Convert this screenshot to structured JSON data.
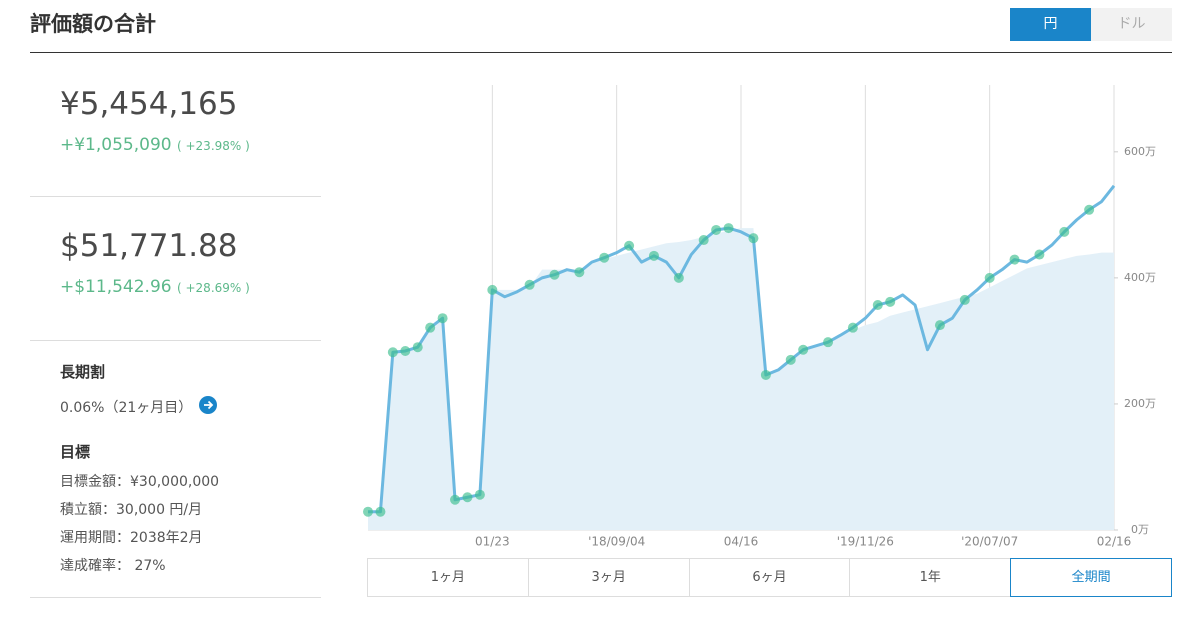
{
  "header": {
    "title": "評価額の合計",
    "currency_toggle": [
      "円",
      "ドル"
    ]
  },
  "summary": {
    "yen": {
      "total": "¥5,454,165",
      "gain": "+¥1,055,090",
      "gain_pct": "( +23.98% )"
    },
    "usd": {
      "total": "$51,771.88",
      "gain": "+$11,542.96",
      "gain_pct": "( +28.69% )"
    },
    "discount": {
      "label": "長期割",
      "value": "0.06%（21ヶ月目）"
    },
    "goal": {
      "label": "目標",
      "lines": [
        "目標金額：¥30,000,000",
        "積立額：30,000 円/月",
        "運用期間：2038年2月",
        "達成確率： 27%"
      ]
    }
  },
  "chart_data": {
    "type": "line",
    "categories": [
      null,
      null,
      null,
      null,
      null,
      null,
      null,
      null,
      null,
      null,
      "01/23",
      null,
      null,
      null,
      null,
      null,
      null,
      null,
      null,
      null,
      "'18/09/04",
      null,
      null,
      null,
      null,
      null,
      null,
      null,
      null,
      null,
      "04/16",
      null,
      null,
      null,
      null,
      null,
      null,
      null,
      null,
      null,
      "'19/11/26",
      null,
      null,
      null,
      null,
      null,
      null,
      null,
      null,
      null,
      "'20/07/07",
      null,
      null,
      null,
      null,
      null,
      null,
      null,
      null,
      null,
      "02/16"
    ],
    "series": [
      {
        "color": "#6cb8e0",
        "values": [
          29,
          29,
          282,
          284,
          290,
          321,
          336,
          48,
          52,
          56,
          381,
          370,
          378,
          389,
          400,
          405,
          413,
          409,
          425,
          432,
          440,
          451,
          425,
          435,
          425,
          400,
          437,
          460,
          476,
          479,
          473,
          463,
          246,
          254,
          270,
          286,
          292,
          298,
          309,
          321,
          336,
          357,
          362,
          373,
          357,
          286,
          325,
          336,
          365,
          381,
          400,
          413,
          429,
          425,
          437,
          452,
          473,
          492,
          508,
          521,
          546
        ]
      },
      {
        "color": "#e3f0f8",
        "fill": true,
        "values": [
          29,
          29,
          282,
          284,
          290,
          321,
          336,
          48,
          52,
          56,
          381,
          381,
          381,
          385,
          413,
          413,
          413,
          413,
          425,
          430,
          435,
          440,
          445,
          450,
          455,
          457,
          460,
          465,
          470,
          475,
          479,
          479,
          246,
          254,
          270,
          286,
          292,
          298,
          309,
          317,
          325,
          330,
          340,
          345,
          350,
          355,
          360,
          365,
          370,
          375,
          385,
          395,
          405,
          415,
          420,
          425,
          430,
          435,
          437,
          440,
          440
        ]
      },
      {
        "color": "#3dbf8f",
        "markers": true,
        "values": [
          29,
          29,
          282,
          284,
          290,
          321,
          336,
          48,
          52,
          56,
          381,
          null,
          null,
          389,
          null,
          405,
          null,
          409,
          null,
          432,
          null,
          451,
          null,
          435,
          null,
          400,
          null,
          460,
          476,
          479,
          null,
          463,
          246,
          null,
          270,
          286,
          null,
          298,
          null,
          321,
          null,
          357,
          362,
          null,
          null,
          null,
          325,
          null,
          365,
          null,
          400,
          null,
          429,
          null,
          437,
          null,
          473,
          null,
          508,
          null,
          null
        ]
      }
    ],
    "ylim": [
      0,
      706
    ],
    "yticks": [
      {
        "value": 0,
        "label": "0万"
      },
      {
        "value": 200,
        "label": "200万"
      },
      {
        "value": 400,
        "label": "400万"
      },
      {
        "value": 600,
        "label": "600万"
      }
    ]
  },
  "periods": [
    "1ヶ月",
    "3ヶ月",
    "6ヶ月",
    "1年",
    "全期間"
  ]
}
